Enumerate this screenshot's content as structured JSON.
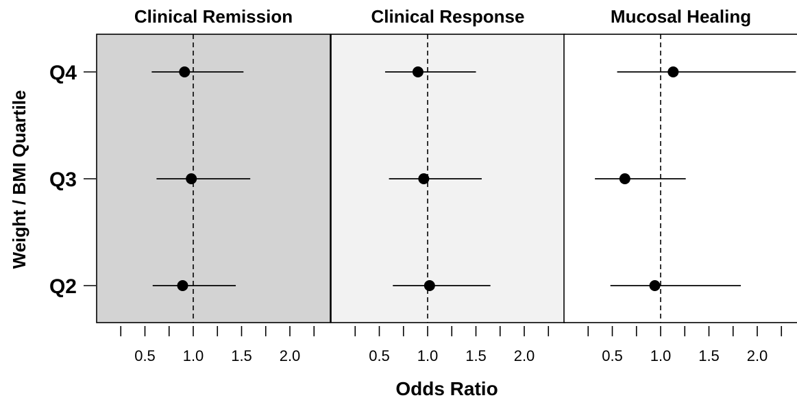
{
  "chart_data": {
    "type": "scatter",
    "subtype": "forest-plot",
    "xlabel": "Odds Ratio",
    "ylabel": "Weight / BMI Quartile",
    "categories": [
      "Q4",
      "Q3",
      "Q2"
    ],
    "x_ticks": [
      0.5,
      1.0,
      1.5,
      2.0
    ],
    "x_tick_labels": [
      "0.5",
      "1.0",
      "1.5",
      "2.0"
    ],
    "minor_ticks": [
      0.25,
      0.5,
      0.75,
      1.0,
      1.25,
      1.5,
      1.75,
      2.0,
      2.25
    ],
    "xlim": [
      0,
      2.42
    ],
    "reference_line": 1.0,
    "grid": false,
    "legend": "none",
    "panels": [
      {
        "title": "Clinical Remission",
        "background": "#d3d3d3",
        "points": [
          {
            "category": "Q4",
            "or": 0.91,
            "lower": 0.57,
            "upper": 1.52
          },
          {
            "category": "Q3",
            "or": 0.98,
            "lower": 0.62,
            "upper": 1.59
          },
          {
            "category": "Q2",
            "or": 0.89,
            "lower": 0.58,
            "upper": 1.44
          }
        ]
      },
      {
        "title": "Clinical Response",
        "background": "#f2f2f2",
        "points": [
          {
            "category": "Q4",
            "or": 0.9,
            "lower": 0.56,
            "upper": 1.5
          },
          {
            "category": "Q3",
            "or": 0.96,
            "lower": 0.6,
            "upper": 1.56
          },
          {
            "category": "Q2",
            "or": 1.02,
            "lower": 0.64,
            "upper": 1.65
          }
        ]
      },
      {
        "title": "Mucosal Healing",
        "background": "#ffffff",
        "points": [
          {
            "category": "Q4",
            "or": 1.13,
            "lower": 0.55,
            "upper": 2.4
          },
          {
            "category": "Q3",
            "or": 0.63,
            "lower": 0.32,
            "upper": 1.26
          },
          {
            "category": "Q2",
            "or": 0.94,
            "lower": 0.48,
            "upper": 1.83
          }
        ]
      }
    ]
  }
}
